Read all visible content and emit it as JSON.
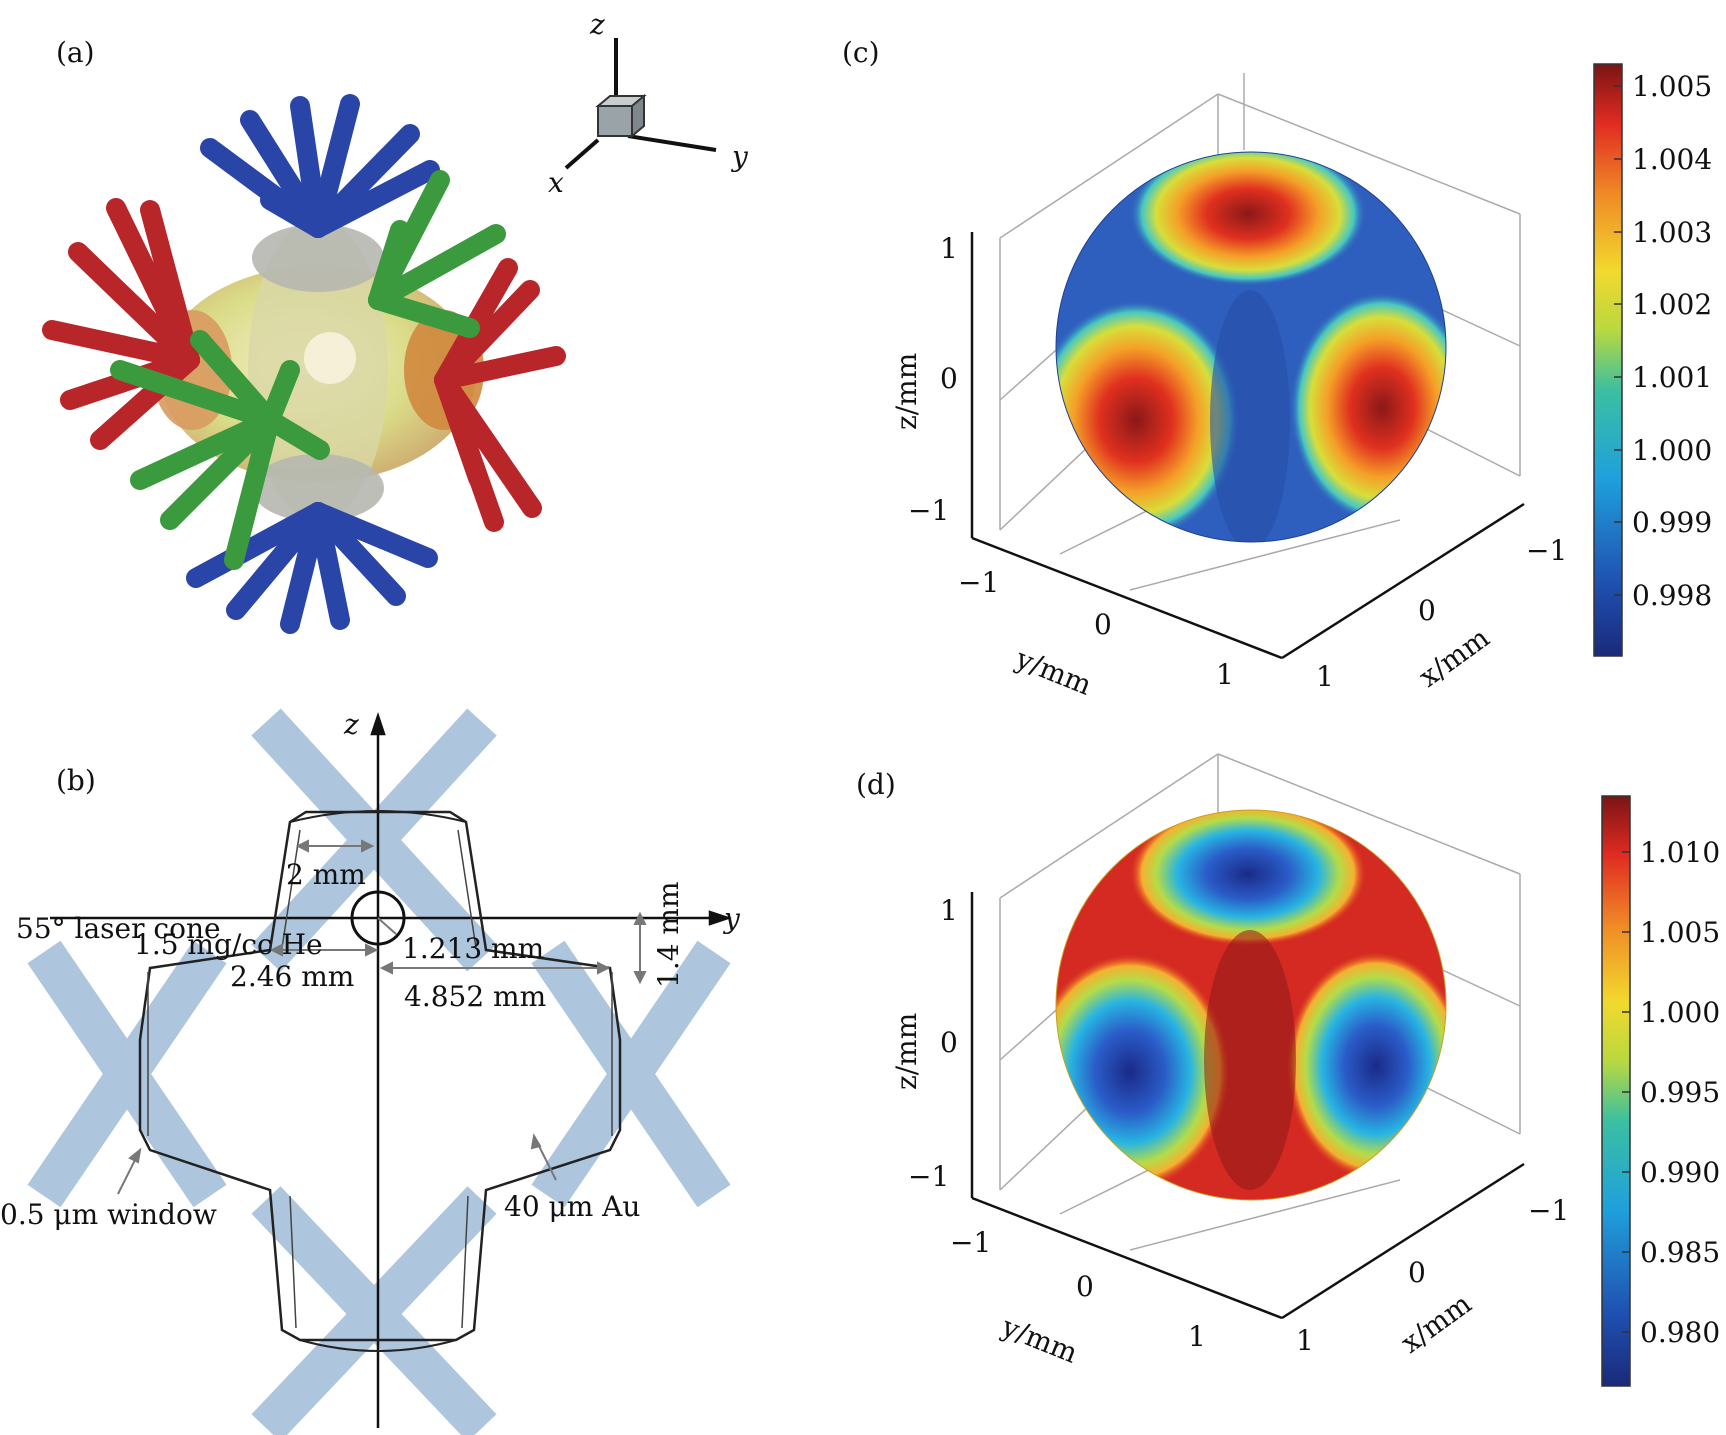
{
  "panels": {
    "a": {
      "label": "(a)",
      "axes": {
        "x": "x",
        "y": "y",
        "z": "z"
      }
    },
    "b": {
      "label": "(b)",
      "axes": {
        "y": "y",
        "z": "z"
      },
      "annotations": {
        "dim_2mm": "2 mm",
        "laser_cone": "55° laser cone",
        "dim_246": "2.46 mm",
        "dim_4852": "4.852 mm",
        "dim_14": "1.4 mm",
        "gas": "1.5 mg/cc He",
        "radius": "1.213 mm",
        "window": "0.5  μm window",
        "wall": "40 μm Au"
      },
      "colors": {
        "laser": "#a9c3dd",
        "outline": "#222222"
      }
    },
    "c": {
      "label": "(c)",
      "zlabel": "z/mm",
      "ylabel": "y/mm",
      "xlabel": "x/mm",
      "z_ticks": [
        "1",
        "0",
        "−1"
      ],
      "y_ticks": [
        "−1",
        "0",
        "1"
      ],
      "x_ticks": [
        "−1",
        "0",
        "1"
      ],
      "colorbar_ticks": [
        "1.005",
        "1.004",
        "1.003",
        "1.002",
        "1.001",
        "1.000",
        "0.999",
        "0.998"
      ]
    },
    "d": {
      "label": "(d)",
      "zlabel": "z/mm",
      "ylabel": "y/mm",
      "xlabel": "x/mm",
      "z_ticks": [
        "1",
        "0",
        "−1"
      ],
      "y_ticks": [
        "−1",
        "0",
        "1"
      ],
      "x_ticks": [
        "−1",
        "0",
        "1"
      ],
      "colorbar_ticks": [
        "1.010",
        "1.005",
        "1.000",
        "0.995",
        "0.990",
        "0.985",
        "0.980"
      ]
    }
  },
  "chart_data": [
    {
      "type": "heatmap",
      "panel": "c",
      "colorbar": {
        "ticks": [
          1.005,
          1.004,
          1.003,
          1.002,
          1.001,
          1.0,
          0.999,
          0.998
        ],
        "range": [
          0.9972,
          1.0053
        ],
        "colormap": "jet"
      },
      "axes": {
        "x": [
          -1,
          0,
          1
        ],
        "y": [
          -1,
          0,
          1
        ],
        "z": [
          -1,
          0,
          1
        ]
      }
    },
    {
      "type": "heatmap",
      "panel": "d",
      "colorbar": {
        "ticks": [
          1.01,
          1.005,
          1.0,
          0.995,
          0.99,
          0.985,
          0.98
        ],
        "range": [
          0.976,
          1.013
        ],
        "colormap": "jet"
      },
      "axes": {
        "x": [
          -1,
          0,
          1
        ],
        "y": [
          -1,
          0,
          1
        ],
        "z": [
          -1,
          0,
          1
        ]
      }
    }
  ]
}
